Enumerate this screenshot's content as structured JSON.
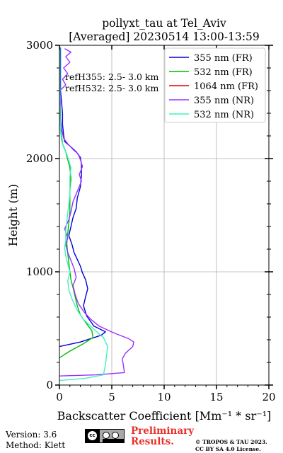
{
  "chart_data": {
    "type": "line",
    "title": "pollyxt_tau at Tel_Aviv",
    "subtitle": "[Averaged] 20230514 13:00-13:59",
    "xlabel": "Backscatter Coefficient [Mm⁻¹ * sr⁻¹]",
    "ylabel": "Height (m)",
    "xlim": [
      0,
      20
    ],
    "ylim": [
      0,
      3000
    ],
    "x_ticks": [
      0,
      5,
      10,
      15,
      20
    ],
    "y_ticks": [
      0,
      1000,
      2000,
      3000
    ],
    "grid": true,
    "legend_position": "top-right",
    "annotations": [
      "refH355:  2.5- 3.0 km",
      "refH532:  2.5- 3.0 km"
    ],
    "series": [
      {
        "name": "355 nm (FR)",
        "color": "#0000dd",
        "points": [
          [
            0.0,
            340
          ],
          [
            2.0,
            380
          ],
          [
            4.0,
            440
          ],
          [
            4.4,
            470
          ],
          [
            3.3,
            520
          ],
          [
            2.6,
            610
          ],
          [
            2.3,
            700
          ],
          [
            2.5,
            780
          ],
          [
            2.7,
            850
          ],
          [
            2.5,
            930
          ],
          [
            2.2,
            990
          ],
          [
            2.0,
            1050
          ],
          [
            1.7,
            1110
          ],
          [
            1.4,
            1170
          ],
          [
            1.2,
            1240
          ],
          [
            0.9,
            1320
          ],
          [
            1.1,
            1400
          ],
          [
            1.3,
            1480
          ],
          [
            1.6,
            1560
          ],
          [
            1.7,
            1650
          ],
          [
            2.0,
            1750
          ],
          [
            2.1,
            1850
          ],
          [
            2.1,
            1950
          ],
          [
            2.0,
            2010
          ],
          [
            1.6,
            2060
          ],
          [
            1.0,
            2110
          ],
          [
            0.5,
            2150
          ],
          [
            0.4,
            2210
          ],
          [
            0.3,
            2300
          ],
          [
            0.3,
            2400
          ],
          [
            0.2,
            2500
          ],
          [
            0.1,
            2600
          ],
          [
            0.1,
            2700
          ],
          [
            0.1,
            2800
          ],
          [
            0.1,
            2900
          ],
          [
            0.1,
            2980
          ]
        ]
      },
      {
        "name": "532 nm (FR)",
        "color": "#00bb00",
        "points": [
          [
            0.0,
            240
          ],
          [
            1.0,
            300
          ],
          [
            2.2,
            360
          ],
          [
            3.2,
            420
          ],
          [
            3.1,
            480
          ],
          [
            2.6,
            540
          ],
          [
            2.0,
            620
          ],
          [
            1.7,
            700
          ],
          [
            1.5,
            780
          ],
          [
            1.3,
            860
          ],
          [
            1.1,
            930
          ],
          [
            1.0,
            1000
          ],
          [
            0.9,
            1080
          ],
          [
            0.8,
            1160
          ],
          [
            0.7,
            1250
          ],
          [
            0.8,
            1340
          ],
          [
            0.9,
            1430
          ],
          [
            1.0,
            1530
          ],
          [
            1.0,
            1620
          ],
          [
            1.0,
            1720
          ],
          [
            1.1,
            1820
          ],
          [
            1.0,
            1920
          ],
          [
            0.8,
            1990
          ],
          [
            0.6,
            2060
          ],
          [
            0.3,
            2130
          ],
          [
            0.2,
            2200
          ],
          [
            0.1,
            2300
          ],
          [
            0.1,
            2400
          ],
          [
            0.05,
            2500
          ],
          [
            0.05,
            2600
          ],
          [
            0.05,
            2700
          ],
          [
            0.05,
            2800
          ],
          [
            0.05,
            2900
          ],
          [
            0.05,
            2990
          ]
        ]
      },
      {
        "name": "1064 nm (FR)",
        "color": "#dd0000",
        "points": []
      },
      {
        "name": "355 nm (NR)",
        "color": "#9b30ff",
        "points": [
          [
            0.0,
            80
          ],
          [
            3.5,
            90
          ],
          [
            6.2,
            110
          ],
          [
            6.1,
            180
          ],
          [
            6.0,
            230
          ],
          [
            6.3,
            280
          ],
          [
            7.0,
            340
          ],
          [
            7.1,
            380
          ],
          [
            6.6,
            410
          ],
          [
            5.2,
            460
          ],
          [
            3.8,
            520
          ],
          [
            3.0,
            580
          ],
          [
            2.4,
            640
          ],
          [
            1.8,
            720
          ],
          [
            1.5,
            800
          ],
          [
            1.3,
            880
          ],
          [
            1.6,
            950
          ],
          [
            1.4,
            1030
          ],
          [
            1.1,
            1100
          ],
          [
            0.8,
            1170
          ],
          [
            0.6,
            1240
          ],
          [
            0.8,
            1300
          ],
          [
            0.5,
            1380
          ],
          [
            0.9,
            1460
          ],
          [
            1.1,
            1530
          ],
          [
            1.3,
            1620
          ],
          [
            1.7,
            1710
          ],
          [
            2.1,
            1800
          ],
          [
            1.9,
            1860
          ],
          [
            2.2,
            1930
          ],
          [
            2.0,
            1990
          ],
          [
            1.8,
            2040
          ],
          [
            1.3,
            2080
          ],
          [
            0.8,
            2130
          ],
          [
            0.4,
            2180
          ],
          [
            0.2,
            2260
          ],
          [
            0.05,
            2400
          ],
          [
            0.1,
            2500
          ],
          [
            0.05,
            2600
          ],
          [
            0.6,
            2650
          ],
          [
            0.3,
            2700
          ],
          [
            0.8,
            2750
          ],
          [
            0.4,
            2800
          ],
          [
            1.0,
            2850
          ],
          [
            0.6,
            2900
          ],
          [
            1.1,
            2940
          ],
          [
            0.5,
            2970
          ]
        ]
      },
      {
        "name": "532 nm (NR)",
        "color": "#40f0c0",
        "points": [
          [
            0.0,
            40
          ],
          [
            2.5,
            60
          ],
          [
            4.2,
            90
          ],
          [
            4.4,
            180
          ],
          [
            4.5,
            260
          ],
          [
            4.6,
            340
          ],
          [
            4.2,
            420
          ],
          [
            3.2,
            500
          ],
          [
            2.3,
            580
          ],
          [
            1.7,
            660
          ],
          [
            1.2,
            760
          ],
          [
            0.9,
            840
          ],
          [
            0.8,
            920
          ],
          [
            1.0,
            1000
          ],
          [
            0.8,
            1070
          ],
          [
            0.6,
            1140
          ],
          [
            0.5,
            1210
          ],
          [
            0.6,
            1280
          ],
          [
            0.6,
            1360
          ],
          [
            0.7,
            1440
          ],
          [
            0.8,
            1520
          ],
          [
            0.9,
            1600
          ],
          [
            1.0,
            1680
          ],
          [
            1.0,
            1760
          ],
          [
            1.0,
            1840
          ],
          [
            1.1,
            1920
          ],
          [
            0.9,
            1980
          ],
          [
            0.7,
            2040
          ],
          [
            0.4,
            2100
          ],
          [
            0.2,
            2160
          ],
          [
            0.1,
            2250
          ],
          [
            0.05,
            2400
          ],
          [
            0.05,
            2600
          ],
          [
            0.05,
            2800
          ],
          [
            0.05,
            2990
          ]
        ]
      }
    ]
  },
  "footer": {
    "version": "Version: 3.6",
    "method": "Method: Klett",
    "preliminary_line1": "Preliminary",
    "preliminary_line2": "Results.",
    "copyright_line1": "© TROPOS & TAU 2023.",
    "copyright_line2": "CC BY SA 4.0 License.",
    "license_badge": "cc-by-sa-badge"
  }
}
